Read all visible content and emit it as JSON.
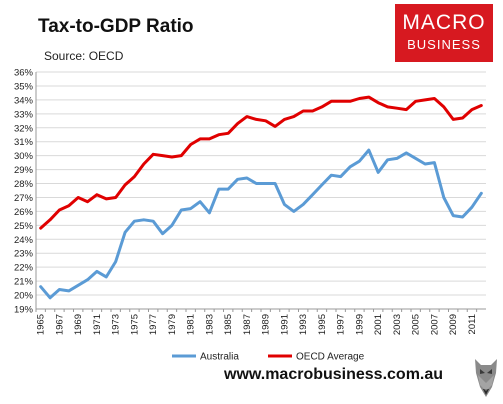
{
  "header": {
    "title": "Tax-to-GDP Ratio",
    "source": "Source: OECD"
  },
  "logo": {
    "line1": "MACRO",
    "line2": "BUSINESS",
    "color": "#d71920"
  },
  "footer": {
    "url": "www.macrobusiness.com.au"
  },
  "chart_data": {
    "type": "line",
    "title": "Tax-to-GDP Ratio",
    "subtitle": "Source: OECD",
    "xlabel": "",
    "ylabel": "",
    "x": [
      1965,
      1966,
      1967,
      1968,
      1969,
      1970,
      1971,
      1972,
      1973,
      1974,
      1975,
      1976,
      1977,
      1978,
      1979,
      1980,
      1981,
      1982,
      1983,
      1984,
      1985,
      1986,
      1987,
      1988,
      1989,
      1990,
      1991,
      1992,
      1993,
      1994,
      1995,
      1996,
      1997,
      1998,
      1999,
      2000,
      2001,
      2002,
      2003,
      2004,
      2005,
      2006,
      2007,
      2008,
      2009,
      2010,
      2011,
      2012
    ],
    "x_tick_labels": [
      "1965",
      "1967",
      "1969",
      "1971",
      "1973",
      "1975",
      "1977",
      "1979",
      "1981",
      "1983",
      "1985",
      "1987",
      "1989",
      "1991",
      "1993",
      "1995",
      "1997",
      "1999",
      "2001",
      "2003",
      "2005",
      "2007",
      "2009",
      "2011"
    ],
    "ylim": [
      19,
      36
    ],
    "y_tick_labels": [
      "19%",
      "20%",
      "21%",
      "22%",
      "23%",
      "24%",
      "25%",
      "26%",
      "27%",
      "28%",
      "29%",
      "30%",
      "31%",
      "32%",
      "33%",
      "34%",
      "35%",
      "36%"
    ],
    "grid": true,
    "legend_position": "bottom",
    "series": [
      {
        "name": "Australia",
        "color": "#5b9bd5",
        "values": [
          20.6,
          19.8,
          20.4,
          20.3,
          20.7,
          21.1,
          21.7,
          21.3,
          22.4,
          24.5,
          25.3,
          25.4,
          25.3,
          24.4,
          25.0,
          26.1,
          26.2,
          26.7,
          25.9,
          27.6,
          27.6,
          28.3,
          28.4,
          28.0,
          28.0,
          28.0,
          26.5,
          26.0,
          26.5,
          27.2,
          27.9,
          28.6,
          28.5,
          29.2,
          29.6,
          30.4,
          28.8,
          29.7,
          29.8,
          30.2,
          29.8,
          29.4,
          29.5,
          27.0,
          25.7,
          25.6,
          26.3,
          27.3
        ]
      },
      {
        "name": "OECD Average",
        "color": "#e00000",
        "values": [
          24.8,
          25.4,
          26.1,
          26.4,
          27.0,
          26.7,
          27.2,
          26.9,
          27.0,
          27.9,
          28.5,
          29.4,
          30.1,
          30.0,
          29.9,
          30.0,
          30.8,
          31.2,
          31.2,
          31.5,
          31.6,
          32.3,
          32.8,
          32.6,
          32.5,
          32.1,
          32.6,
          32.8,
          33.2,
          33.2,
          33.5,
          33.9,
          33.9,
          33.9,
          34.1,
          34.2,
          33.8,
          33.5,
          33.4,
          33.3,
          33.9,
          34.0,
          34.1,
          33.5,
          32.6,
          32.7,
          33.3,
          33.6
        ]
      }
    ]
  }
}
